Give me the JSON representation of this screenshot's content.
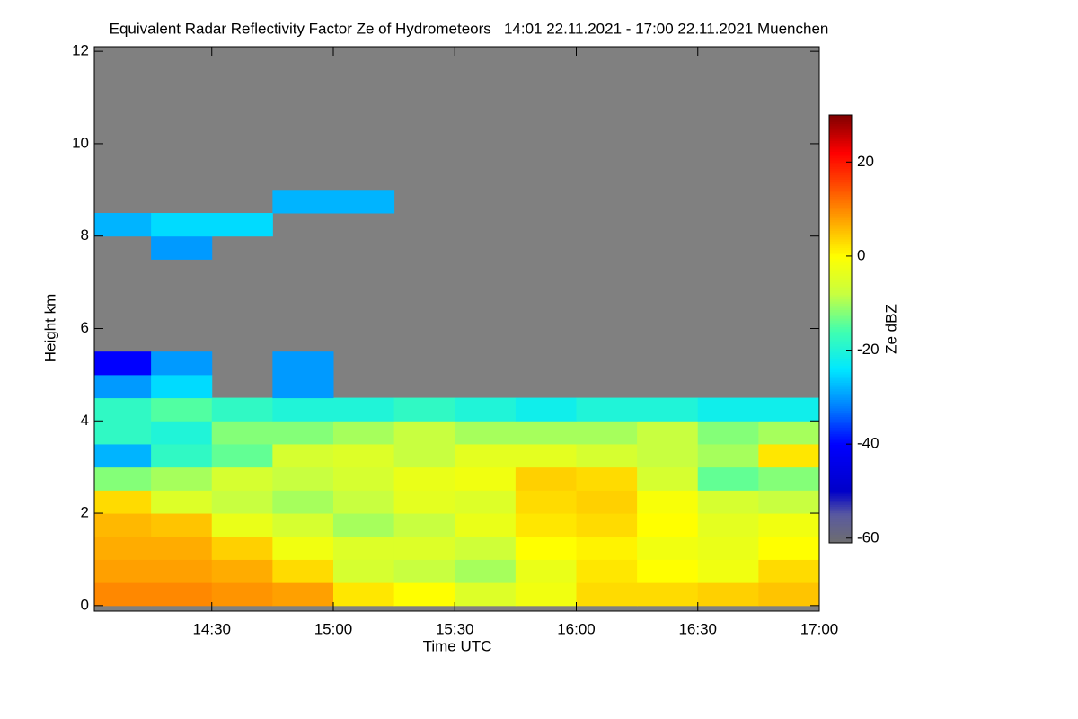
{
  "chart_data": {
    "type": "heatmap",
    "title": "Equivalent Radar Reflectivity Factor Ze of Hydrometeors   14:01 22.11.2021 - 17:00 22.11.2021 Muenchen",
    "x_label": "Time UTC",
    "y_label": "Height km",
    "colorbar_label": "Ze dBZ",
    "xlim": [
      14.0167,
      17.0
    ],
    "xticks": [
      {
        "value": 14.5,
        "label": "14:30"
      },
      {
        "value": 15.0,
        "label": "15:00"
      },
      {
        "value": 15.5,
        "label": "15:30"
      },
      {
        "value": 16.0,
        "label": "16:00"
      },
      {
        "value": 16.5,
        "label": "16:30"
      },
      {
        "value": 17.0,
        "label": "17:00"
      }
    ],
    "ylim": [
      -0.12,
      12.1
    ],
    "yticks": [
      0,
      2,
      4,
      6,
      8,
      10,
      12
    ],
    "clim": [
      -61,
      30
    ],
    "cticks": [
      -60,
      -40,
      -20,
      0,
      20
    ],
    "no_signal_color": "#808080",
    "colorscale": [
      [
        -61,
        "#6e6e6e"
      ],
      [
        -55,
        "#5a5aa0"
      ],
      [
        -50,
        "#0000c8"
      ],
      [
        -40,
        "#0000ff"
      ],
      [
        -32,
        "#0080ff"
      ],
      [
        -24,
        "#00e8ff"
      ],
      [
        -16,
        "#40ffb0"
      ],
      [
        -8,
        "#c8ff40"
      ],
      [
        0,
        "#ffff00"
      ],
      [
        8,
        "#ffa000"
      ],
      [
        16,
        "#ff4000"
      ],
      [
        22,
        "#ff0000"
      ],
      [
        30,
        "#800000"
      ]
    ],
    "x": [
      14.125,
      14.375,
      14.625,
      14.875,
      15.125,
      15.375,
      15.625,
      15.875,
      16.125,
      16.375,
      16.625,
      16.875
    ],
    "y": [
      0.25,
      0.75,
      1.25,
      1.75,
      2.25,
      2.75,
      3.25,
      3.75,
      4.25,
      4.75,
      5.25,
      5.75,
      6.25,
      6.75,
      7.25,
      7.75,
      8.25,
      8.75
    ],
    "values": [
      [
        10,
        10,
        9,
        8,
        2,
        0,
        -5,
        -2,
        3,
        3,
        4,
        5
      ],
      [
        8,
        8,
        7,
        3,
        -6,
        -8,
        -10,
        -3,
        2,
        0,
        -2,
        3
      ],
      [
        7,
        7,
        4,
        -2,
        -5,
        -5,
        -7,
        0,
        1,
        -2,
        -3,
        0
      ],
      [
        6,
        5,
        -3,
        -6,
        -10,
        -8,
        -3,
        2,
        3,
        0,
        -4,
        -2
      ],
      [
        3,
        -5,
        -8,
        -10,
        -8,
        -4,
        -5,
        3,
        4,
        -1,
        -6,
        -8
      ],
      [
        -12,
        -10,
        -6,
        -8,
        -6,
        -3,
        -2,
        4,
        3,
        -6,
        -14,
        -12
      ],
      [
        -28,
        -18,
        -14,
        -6,
        -5,
        -8,
        -4,
        -4,
        -6,
        -8,
        -10,
        2
      ],
      [
        -18,
        -20,
        -12,
        -12,
        -10,
        -8,
        -10,
        -10,
        -10,
        -8,
        -12,
        -10
      ],
      [
        -18,
        -15,
        -18,
        -20,
        -20,
        -18,
        -20,
        -22,
        -20,
        -20,
        -22,
        -22
      ],
      [
        -30,
        -25,
        null,
        -30,
        null,
        null,
        null,
        null,
        null,
        null,
        null,
        null
      ],
      [
        -40,
        -30,
        null,
        -30,
        null,
        null,
        null,
        null,
        null,
        null,
        null,
        null
      ],
      [
        null,
        null,
        null,
        null,
        null,
        null,
        null,
        null,
        null,
        null,
        null,
        null
      ],
      [
        null,
        null,
        null,
        null,
        null,
        null,
        null,
        null,
        null,
        null,
        null,
        null
      ],
      [
        null,
        null,
        null,
        null,
        null,
        null,
        null,
        null,
        null,
        null,
        null,
        null
      ],
      [
        null,
        null,
        null,
        null,
        null,
        null,
        null,
        null,
        null,
        null,
        null,
        null
      ],
      [
        null,
        -30,
        null,
        null,
        null,
        null,
        null,
        null,
        null,
        null,
        null,
        null
      ],
      [
        -28,
        -25,
        -25,
        null,
        null,
        null,
        null,
        null,
        null,
        null,
        null,
        null
      ],
      [
        null,
        null,
        null,
        -28,
        -28,
        null,
        null,
        null,
        null,
        null,
        null,
        null
      ]
    ]
  }
}
